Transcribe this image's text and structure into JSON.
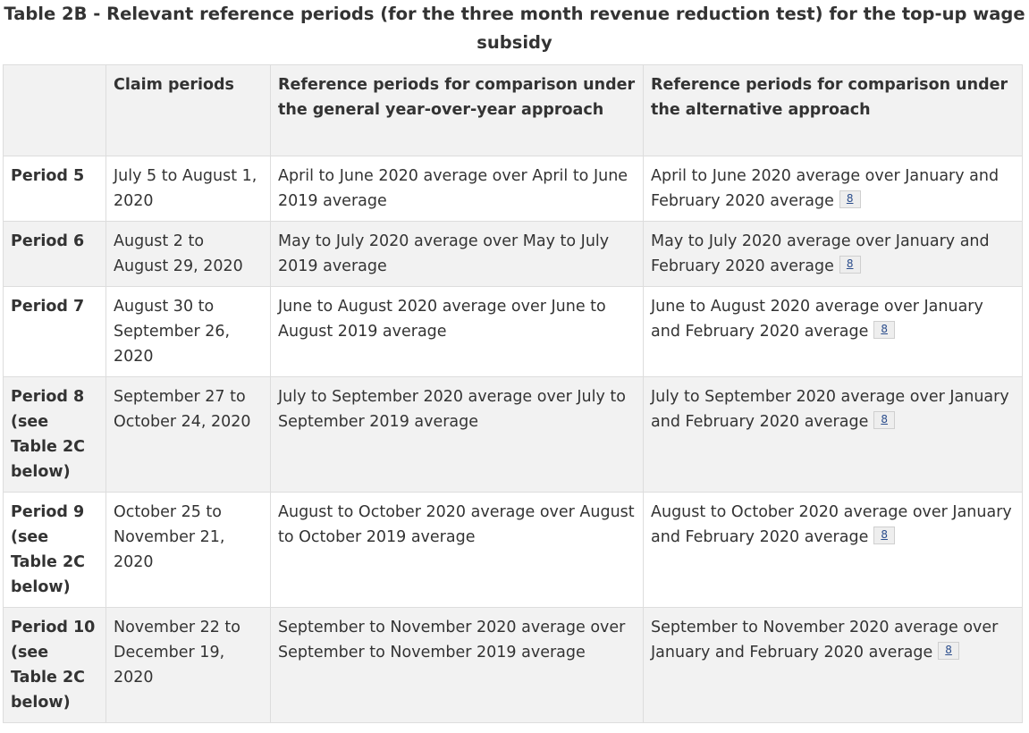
{
  "caption": "Table 2B - Relevant reference periods (for the three month revenue reduction test) for the top-up wage subsidy",
  "headers": {
    "blank": "",
    "claim_periods": "Claim periods",
    "general": "Reference periods for comparison under the general year-over-year approach",
    "alternative": "Reference periods for comparison under the alternative approach"
  },
  "footnote_label": "8",
  "rows": [
    {
      "period": "Period 5",
      "claim": "July 5 to August 1, 2020",
      "general": "April to June 2020 average over April to June 2019 average",
      "alternative": "April to June 2020 average over January and February 2020 average"
    },
    {
      "period": "Period 6",
      "claim": "August 2 to August 29, 2020",
      "general": "May to July 2020 average over May to July 2019 average",
      "alternative": "May to July 2020 average over January and February 2020 average"
    },
    {
      "period": "Period 7",
      "claim": "August 30 to September 26, 2020",
      "general": "June to August 2020 average over June to August 2019 average",
      "alternative": "June to August 2020 average over January and February 2020 average"
    },
    {
      "period": "Period 8 (see Table 2C below)",
      "claim": "September 27 to October 24, 2020",
      "general": "July to September 2020 average over July to September 2019 average",
      "alternative": "July to September 2020 average over January and February 2020 average"
    },
    {
      "period": "Period 9 (see Table 2C below)",
      "claim": "October 25 to November 21, 2020",
      "general": "August to October 2020 average over August to October 2019 average",
      "alternative": "August to October 2020 average over January and February 2020 average"
    },
    {
      "period": "Period 10 (see Table 2C below)",
      "claim": "November 22 to December 19, 2020",
      "general": "September to November 2020 average over September to November 2019 average",
      "alternative": "September to November 2020 average over January and February 2020 average"
    }
  ]
}
